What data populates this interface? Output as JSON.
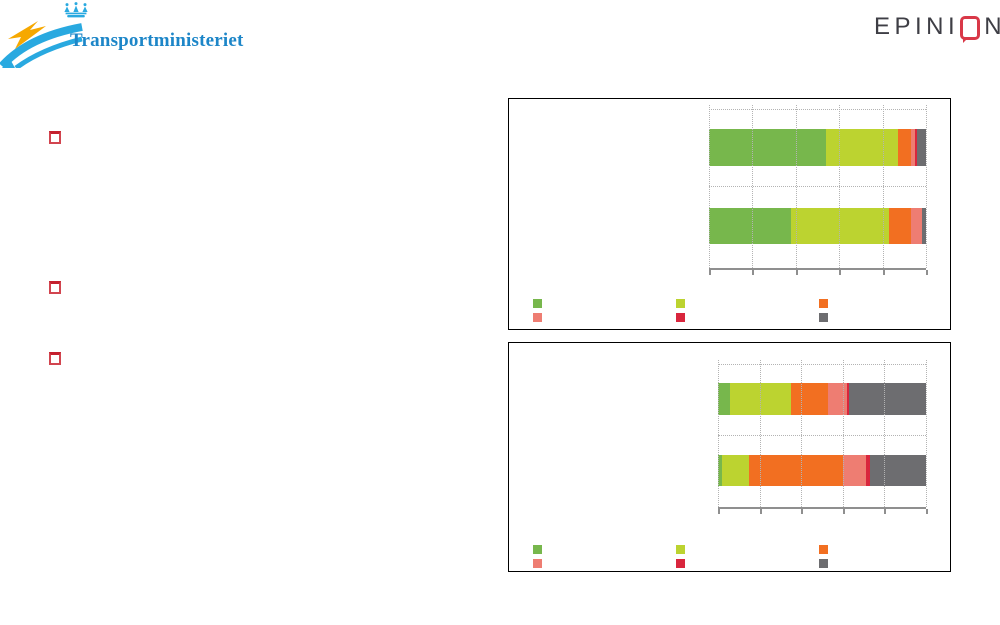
{
  "header": {
    "ministry_name": "Transportministeriet",
    "epinion_left": "EPINI",
    "epinion_right": "N"
  },
  "colors": {
    "ministry_blue_text": "#1d86c8",
    "ministry_light_blue": "#29a9e0",
    "ministry_orange": "#f6a800",
    "epinion_dark": "#3e3e45",
    "epinion_red": "#d93848",
    "bullet_red": "#c5202e",
    "axis_gray": "#8f8f8f",
    "grid_gray": "#b3b3b3"
  },
  "chart_data": [
    {
      "type": "bar",
      "orientation": "horizontal",
      "stacked": true,
      "title": "",
      "categories": [
        "",
        ""
      ],
      "series": [
        {
          "name": "green",
          "color": "#77b74c",
          "values": [
            54,
            38
          ]
        },
        {
          "name": "yellow-green",
          "color": "#bcd330",
          "values": [
            33,
            45
          ]
        },
        {
          "name": "orange",
          "color": "#f26f21",
          "values": [
            6,
            10
          ]
        },
        {
          "name": "salmon",
          "color": "#ee7d72",
          "values": [
            2,
            5
          ]
        },
        {
          "name": "red",
          "color": "#d9263d",
          "values": [
            1,
            0
          ]
        },
        {
          "name": "dark-gray",
          "color": "#6d6d70",
          "values": [
            4,
            2
          ]
        }
      ],
      "xlim": [
        0,
        100
      ],
      "x_ticks": [
        0,
        20,
        40,
        60,
        80,
        100
      ],
      "grid": "dotted",
      "legend_position": "bottom-left",
      "legend_labels_visible": false
    },
    {
      "type": "bar",
      "orientation": "horizontal",
      "stacked": true,
      "title": "",
      "categories": [
        "",
        ""
      ],
      "series": [
        {
          "name": "green",
          "color": "#77b74c",
          "values": [
            6,
            2
          ]
        },
        {
          "name": "yellow-green",
          "color": "#bcd330",
          "values": [
            29,
            13
          ]
        },
        {
          "name": "orange",
          "color": "#f26f21",
          "values": [
            18,
            45
          ]
        },
        {
          "name": "salmon",
          "color": "#ee7d72",
          "values": [
            9,
            11
          ]
        },
        {
          "name": "red",
          "color": "#d9263d",
          "values": [
            1,
            2
          ]
        },
        {
          "name": "dark-gray",
          "color": "#6d6d70",
          "values": [
            37,
            27
          ]
        }
      ],
      "xlim": [
        0,
        100
      ],
      "x_ticks": [
        0,
        20,
        40,
        60,
        80,
        100
      ],
      "grid": "dotted",
      "legend_position": "bottom-left",
      "legend_labels_visible": false
    }
  ]
}
